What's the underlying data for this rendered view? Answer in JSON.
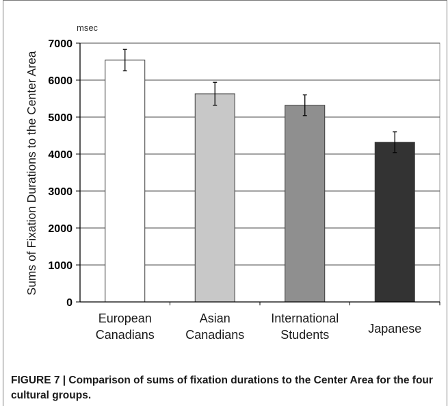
{
  "chart_data": {
    "type": "bar",
    "unit_label": "msec",
    "ylabel": "Sums of Fixation Durations to the Center Area",
    "xlabel": "",
    "categories": [
      [
        "European",
        "Canadians"
      ],
      [
        "Asian",
        "Canadians"
      ],
      [
        "International",
        "Students"
      ],
      [
        "Japanese"
      ]
    ],
    "values": [
      6540,
      5630,
      5320,
      4320
    ],
    "errors": [
      290,
      310,
      280,
      280
    ],
    "bar_colors": [
      "#ffffff",
      "#c8c8c8",
      "#8f8f8f",
      "#333333"
    ],
    "ylim": [
      0,
      7000
    ],
    "yticks": [
      0,
      1000,
      2000,
      3000,
      4000,
      5000,
      6000,
      7000
    ],
    "grid": true
  },
  "caption": "FIGURE 7 | Comparison of sums of fixation durations to the Center Area for the four cultural groups."
}
